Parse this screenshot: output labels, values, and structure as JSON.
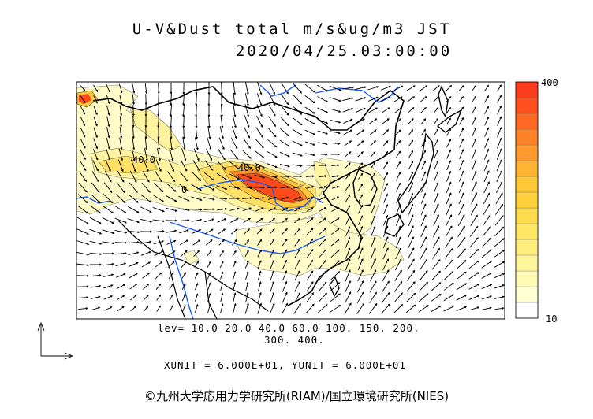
{
  "title_line1": "U-V&Dust total m/s&ug/m3 JST",
  "title_line2": "2020/04/25.03:00:00",
  "colorbar": {
    "max_label": "400",
    "min_label": "10",
    "colors": [
      "#ffffff",
      "#ffffd2",
      "#fffab4",
      "#fff59a",
      "#ffee7d",
      "#ffe664",
      "#ffdc4b",
      "#ffd23c",
      "#ffc837",
      "#ffb432",
      "#ff9b2d",
      "#ff8228",
      "#ff6923",
      "#ff501e",
      "#ff3c1e"
    ]
  },
  "levels_line1": "lev= 10.0 20.0 40.0 60.0 100. 150. 200.",
  "levels_line2": "300. 400.",
  "units_line": "XUNIT = 6.000E+01, YUNIT = 6.000E+01",
  "contour_labels": [
    "40.0",
    "40.0",
    "0"
  ],
  "credit": "©九州大学応用力学研究所(RIAM)/国立環境研究所(NIES)",
  "colors": {
    "land_border": "#000000",
    "river": "#1a5cff",
    "dust_core": "#ff4a1a",
    "dust_light": "#fffbc8"
  }
}
